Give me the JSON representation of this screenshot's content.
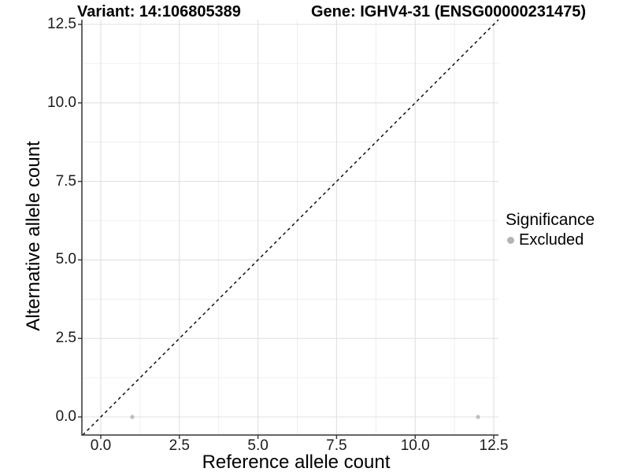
{
  "chart_data": {
    "type": "scatter",
    "title_parts": {
      "variant": "Variant: 14:106805389",
      "gene": "Gene: IGHV4-31 (ENSG00000231475)"
    },
    "xlabel": "Reference allele count",
    "ylabel": "Alternative allele count",
    "xlim": [
      0,
      12.5
    ],
    "ylim": [
      0,
      12.5
    ],
    "x_ticks": [
      0,
      2.5,
      5,
      7.5,
      10,
      12.5
    ],
    "x_tick_labels": [
      "0.0",
      "2.5",
      "5.0",
      "7.5",
      "10.0",
      "12.5"
    ],
    "y_ticks": [
      0,
      2.5,
      5,
      7.5,
      10,
      12.5
    ],
    "y_tick_labels": [
      "0.0",
      "2.5",
      "5.0",
      "7.5",
      "10.0",
      "12.5"
    ],
    "grid": true,
    "legend": {
      "title": "Significance",
      "position": "right"
    },
    "series": [
      {
        "name": "Excluded",
        "color": "#bebebe",
        "points": [
          [
            1,
            0
          ],
          [
            12,
            0
          ]
        ]
      }
    ],
    "reference_line": {
      "type": "identity y=x",
      "linetype": "dashed",
      "color": "#000000"
    }
  },
  "colors": {
    "background": "#ffffff",
    "grid_major": "#e0e0e0",
    "grid_minor": "#ebebeb",
    "axis_line": "#333333",
    "tick_text": "#1a1a1a",
    "legend_key": "#b4b4b4"
  }
}
